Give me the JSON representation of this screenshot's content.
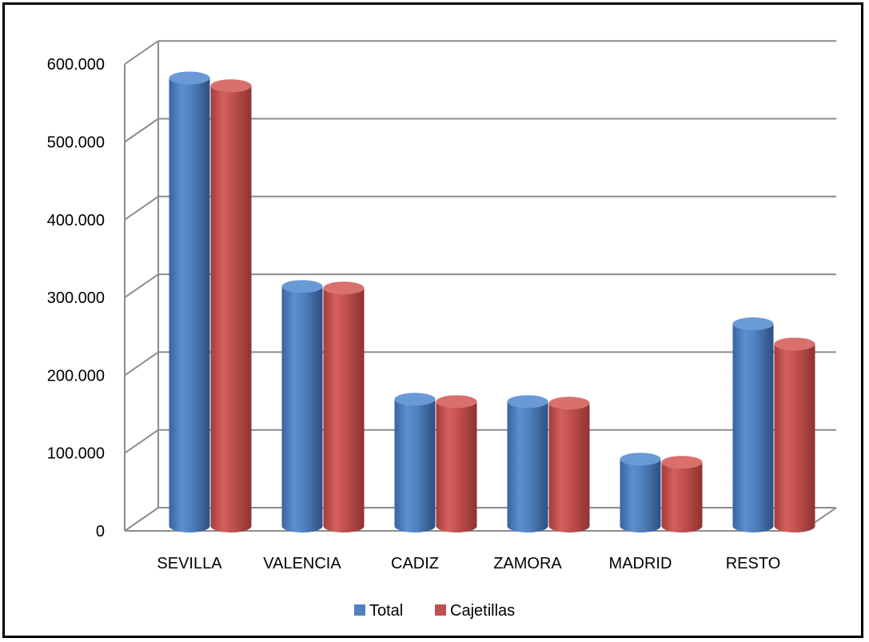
{
  "chart_data": {
    "type": "bar",
    "title": "",
    "xlabel": "",
    "ylabel": "",
    "categories": [
      "SEVILLA",
      "VALENCIA",
      "CADIZ",
      "ZAMORA",
      "MADRID",
      "RESTO"
    ],
    "series": [
      {
        "name": "Total",
        "color": "#4f81bd",
        "values": [
          576000,
          308000,
          163000,
          160000,
          86000,
          260000
        ]
      },
      {
        "name": "Cajetillas",
        "color": "#c0504d",
        "values": [
          566000,
          306000,
          160000,
          158000,
          82000,
          234000
        ]
      }
    ],
    "yticks": [
      0,
      100000,
      200000,
      300000,
      400000,
      500000,
      600000
    ],
    "ytick_labels": [
      "0",
      "100.000",
      "200.000",
      "300.000",
      "400.000",
      "500.000",
      "600.000"
    ],
    "ylim": [
      0,
      600000
    ],
    "grid": true,
    "legend_position": "bottom",
    "style": "3d-cylinder"
  }
}
